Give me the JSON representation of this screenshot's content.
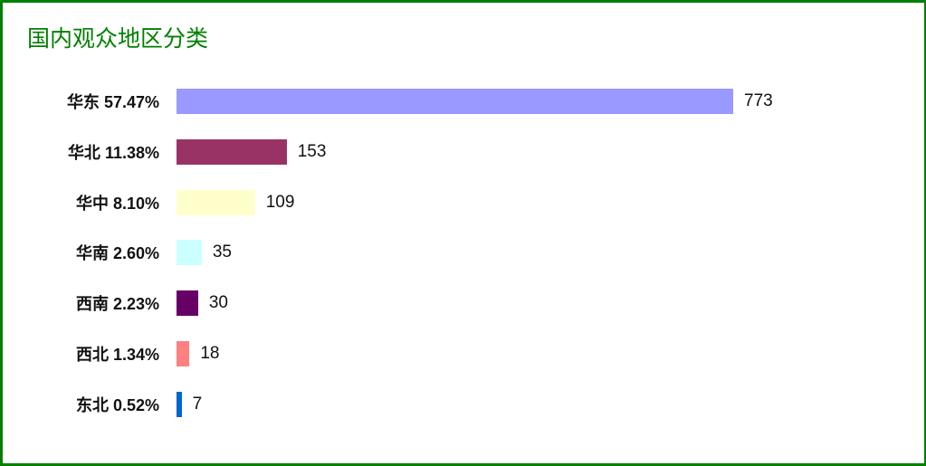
{
  "chart_data": {
    "type": "bar",
    "orientation": "horizontal",
    "title": "国内观众地区分类",
    "categories": [
      "华东 57.47%",
      "华北 11.38%",
      "华中 8.10%",
      "华南 2.60%",
      "西南 2.23%",
      "西北 1.34%",
      "东北 0.52%"
    ],
    "values": [
      773,
      153,
      109,
      35,
      30,
      18,
      7
    ],
    "colors": [
      "#9999ff",
      "#993366",
      "#ffffcc",
      "#ccffff",
      "#660066",
      "#ff8080",
      "#0066cc"
    ],
    "grid": false,
    "title_color": "#008000",
    "border_color": "#008000"
  }
}
